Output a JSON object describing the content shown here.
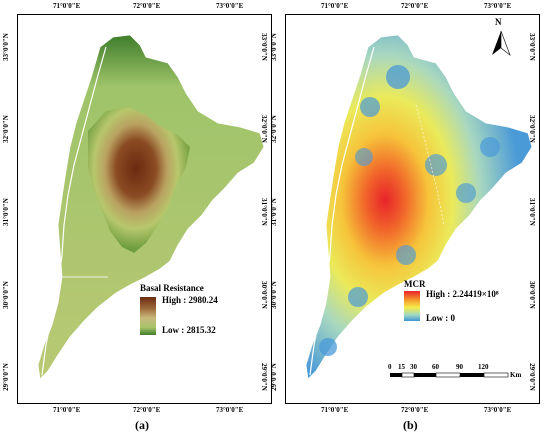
{
  "panel_a": {
    "caption": "(a)",
    "top_ticks": [
      "71°0'0\"E",
      "72°0'0\"E",
      "73°0'0\"E"
    ],
    "bottom_ticks": [
      "71°0'0\"E",
      "72°0'0\"E",
      "73°0'0\"E"
    ],
    "left_ticks": [
      "33°0'0\"N",
      "32°0'0\"N",
      "31°0'0\"N",
      "30°0'0\"N",
      "29°0'0\"N"
    ],
    "right_ticks": [
      "33°0'0\"N",
      "32°0'0\"N",
      "31°0'0\"N",
      "30°0'0\"N",
      "29°0'0\"N"
    ],
    "legend": {
      "title": "Basal Resistance",
      "high": "High : 2980.24",
      "low": "Low : 2815.32",
      "colors": [
        "#6b2a10",
        "#9c6a3a",
        "#c9b87a",
        "#a7c46a",
        "#3f7d2a"
      ]
    }
  },
  "panel_b": {
    "caption": "(b)",
    "top_ticks": [
      "71°0'0\"E",
      "72°0'0\"E",
      "73°0'0\"E"
    ],
    "bottom_ticks": [
      "71°0'0\"E",
      "72°0'0\"E",
      "73°0'0\"E"
    ],
    "left_ticks": [
      "33°0'0\"N",
      "32°0'0\"N",
      "31°0'0\"N",
      "30°0'0\"N",
      "29°0'0\"N"
    ],
    "right_ticks": [
      "33°0'0\"N",
      "32°0'0\"N",
      "31°0'0\"N",
      "30°0'0\"N",
      "29°0'0\"N"
    ],
    "north_label": "N",
    "legend": {
      "title": "MCR",
      "high": "High : 2.24419×10⁸",
      "low": "Low : 0",
      "colors": [
        "#e8232a",
        "#f59a2c",
        "#f6ec4a",
        "#9fd7c3",
        "#3f95d6"
      ]
    },
    "scale_bar": {
      "labels": [
        "0",
        "15",
        "30",
        "60",
        "90",
        "120"
      ],
      "unit": "Km"
    }
  }
}
